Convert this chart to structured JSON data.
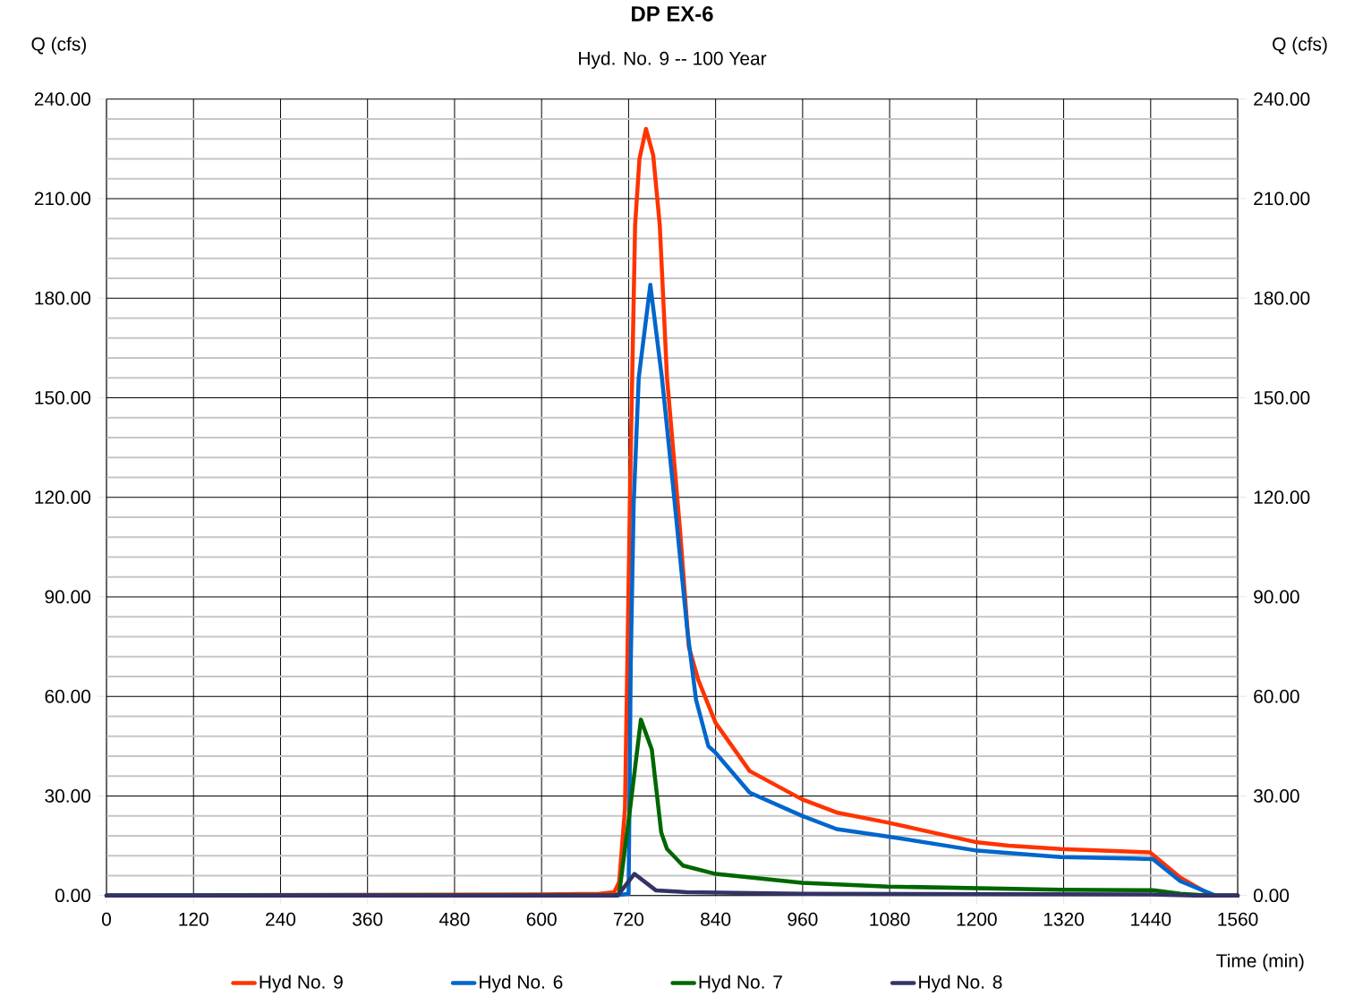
{
  "chart_data": {
    "type": "line",
    "title": "DP EX-6",
    "subtitle": "Hyd. No. 9 -- 100 Year",
    "xlabel": "Time (min)",
    "ylabel": "Q (cfs)",
    "y2label": "Q (cfs)",
    "xlim": [
      0,
      1560
    ],
    "xticks": [
      0,
      120,
      240,
      360,
      480,
      600,
      720,
      840,
      960,
      1080,
      1200,
      1320,
      1440,
      1560
    ],
    "ylim": [
      0,
      240
    ],
    "yticks": [
      {
        "value": 0,
        "label": "0.00"
      },
      {
        "value": 30,
        "label": "30.00"
      },
      {
        "value": 60,
        "label": "60.00"
      },
      {
        "value": 90,
        "label": "90.00"
      },
      {
        "value": 120,
        "label": "120.00"
      },
      {
        "value": 150,
        "label": "150.00"
      },
      {
        "value": 180,
        "label": "180.00"
      },
      {
        "value": 210,
        "label": "210.00"
      },
      {
        "value": 240,
        "label": "240.00"
      }
    ],
    "y2lim": [
      0,
      240
    ],
    "y2ticks": [
      {
        "value": 0,
        "label": "0.00"
      },
      {
        "value": 30,
        "label": "30.00"
      },
      {
        "value": 60,
        "label": "60.00"
      },
      {
        "value": 90,
        "label": "90.00"
      },
      {
        "value": 120,
        "label": "120.00"
      },
      {
        "value": 150,
        "label": "150.00"
      },
      {
        "value": 180,
        "label": "180.00"
      },
      {
        "value": 210,
        "label": "210.00"
      },
      {
        "value": 240,
        "label": "240.00"
      }
    ],
    "grid": true,
    "legend": "bottom",
    "series": [
      {
        "name": "Hyd No. 9",
        "color": "#ff3300",
        "x": [
          0,
          600,
          680,
          700,
          707,
          715,
          723,
          729,
          735,
          744,
          754,
          763,
          773,
          791,
          803,
          816,
          840,
          887,
          959,
          1007,
          1077,
          1201,
          1244,
          1316,
          1439,
          1481,
          1524,
          1560
        ],
        "values": [
          0,
          0.3,
          0.5,
          1,
          4,
          26,
          134,
          202,
          222,
          231,
          223,
          202,
          156,
          110,
          75,
          65,
          52,
          37.5,
          29,
          25,
          22,
          16,
          15,
          14,
          13,
          5.4,
          0,
          0
        ]
      },
      {
        "name": "Hyd No. 6",
        "color": "#0066cc",
        "x": [
          0,
          600,
          700,
          720,
          723,
          727,
          734,
          750,
          766,
          781,
          801,
          813,
          830,
          840,
          887,
          959,
          1007,
          1077,
          1201,
          1316,
          1443,
          1481,
          1529,
          1560
        ],
        "values": [
          0,
          0,
          0,
          0.5,
          70,
          118,
          156,
          184,
          156,
          124,
          80,
          59,
          45,
          43,
          31,
          24,
          20,
          17.8,
          13.5,
          11.6,
          11,
          4.3,
          0,
          0
        ]
      },
      {
        "name": "Hyd No. 7",
        "color": "#006600",
        "x": [
          0,
          700,
          707,
          722,
          737,
          752,
          765,
          773,
          795,
          840,
          959,
          1077,
          1316,
          1443,
          1481,
          1520,
          1560
        ],
        "values": [
          0,
          0,
          0.5,
          26,
          53,
          44,
          19,
          14,
          9,
          6.5,
          3.8,
          2.7,
          1.7,
          1.6,
          0.5,
          0,
          0
        ]
      },
      {
        "name": "Hyd No. 8",
        "color": "#333366",
        "x": [
          0,
          705,
          728,
          758,
          800,
          960,
          1440,
          1500,
          1560
        ],
        "values": [
          0,
          0,
          6.5,
          1.5,
          1,
          0.5,
          0.3,
          0,
          0
        ]
      }
    ]
  }
}
